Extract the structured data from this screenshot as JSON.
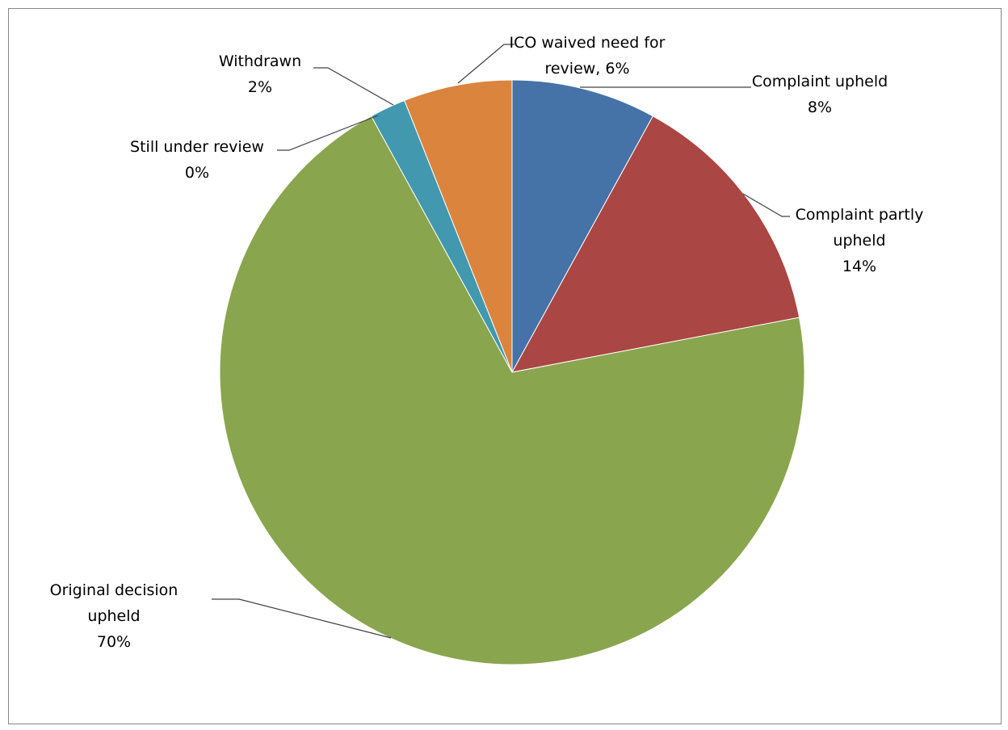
{
  "chart_data": {
    "type": "pie",
    "title": "",
    "start_angle_deg": 0,
    "direction": "clockwise",
    "slices": [
      {
        "key": "complaint_upheld",
        "label_lines": [
          "Complaint upheld",
          "8%"
        ],
        "value": 8,
        "color": "#4572A7"
      },
      {
        "key": "complaint_partly_upheld",
        "label_lines": [
          "Complaint partly",
          "upheld",
          "14%"
        ],
        "value": 14,
        "color": "#AA4643"
      },
      {
        "key": "original_decision_upheld",
        "label_lines": [
          "Original decision",
          "upheld",
          "70%"
        ],
        "value": 70,
        "color": "#89A54E"
      },
      {
        "key": "still_under_review",
        "label_lines": [
          "Still under review",
          "0%"
        ],
        "value": 0,
        "color": "#71588F"
      },
      {
        "key": "withdrawn",
        "label_lines": [
          "Withdrawn",
          "2%"
        ],
        "value": 2,
        "color": "#4198AF"
      },
      {
        "key": "ico_waived",
        "label_lines": [
          "ICO waived need for",
          "review, 6%"
        ],
        "value": 6,
        "color": "#DB843D"
      }
    ]
  }
}
